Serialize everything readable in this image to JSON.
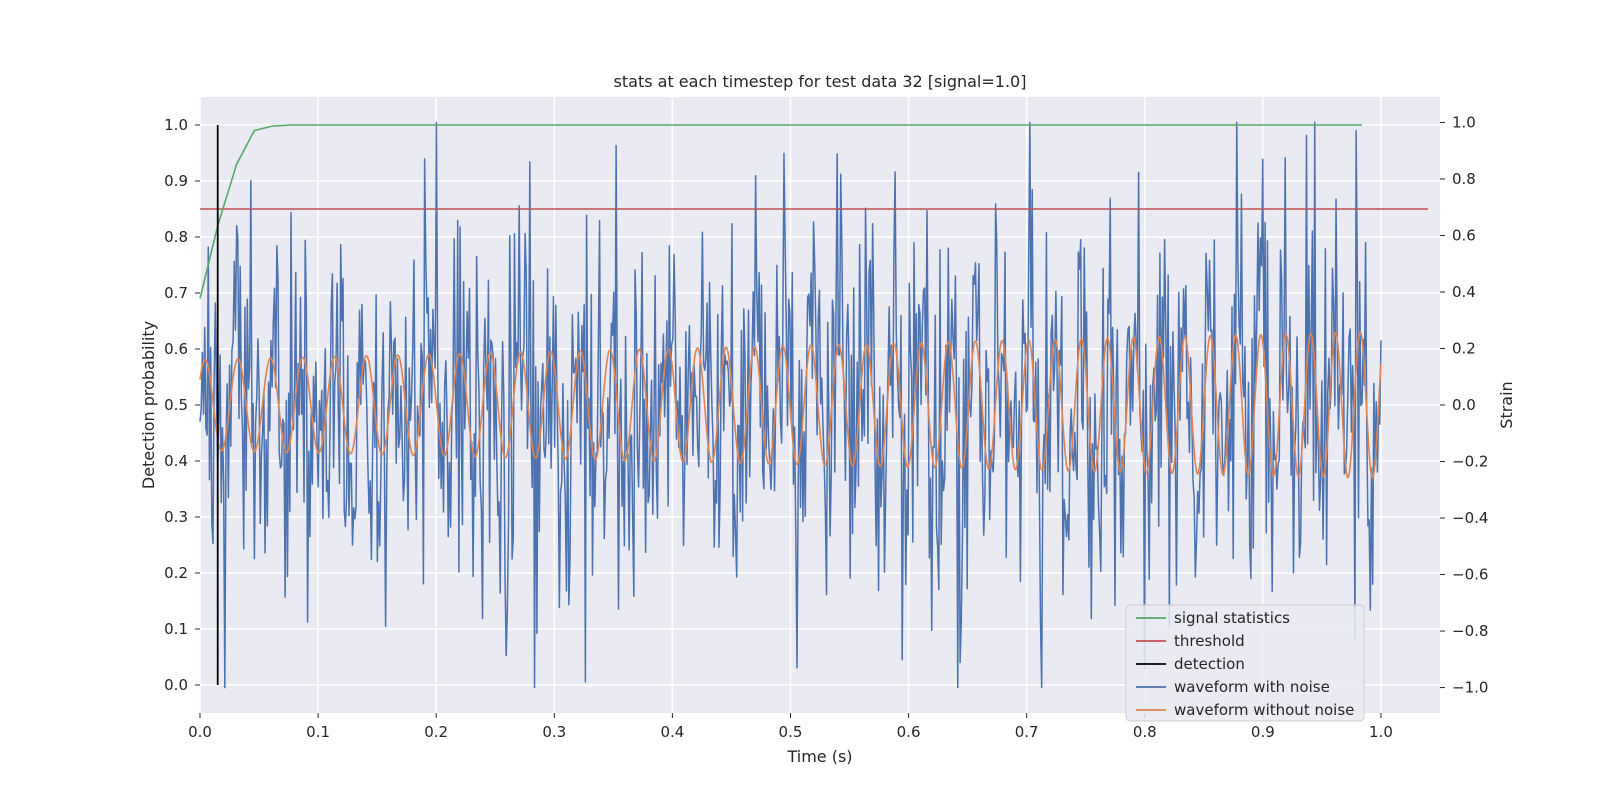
{
  "chart_data": {
    "type": "line",
    "title": "stats at each timestep for test data 32 [signal=1.0]",
    "xlabel": "Time (s)",
    "ylabel_left": "Detection probability",
    "ylabel_right": "Strain",
    "xlim": [
      0.0,
      1.05
    ],
    "ylim_left": [
      -0.05,
      1.05
    ],
    "ylim_right": [
      -1.09,
      1.09
    ],
    "xticks": [
      "0.0",
      "0.1",
      "0.2",
      "0.3",
      "0.4",
      "0.5",
      "0.6",
      "0.7",
      "0.8",
      "0.9",
      "1.0"
    ],
    "yticks_left": [
      "0.0",
      "0.1",
      "0.2",
      "0.3",
      "0.4",
      "0.5",
      "0.6",
      "0.7",
      "0.8",
      "0.9",
      "1.0"
    ],
    "yticks_right": [
      "−1.0",
      "−0.8",
      "−0.6",
      "−0.4",
      "−0.2",
      "0.0",
      "0.2",
      "0.4",
      "0.6",
      "0.8",
      "1.0"
    ],
    "grid": true,
    "legend_position": "lower-right",
    "colors": {
      "background": "#eaeaf2",
      "grid": "#ffffff",
      "signal_statistics": "#55a868",
      "threshold": "#c44e52",
      "detection": "#000000",
      "waveform_with_noise": "#4c72b0",
      "waveform_without_noise": "#dd8452"
    },
    "series": [
      {
        "name": "signal statistics",
        "axis": "left",
        "x": [
          0.0,
          0.015,
          0.031,
          0.046,
          0.061,
          0.077,
          0.1,
          0.2,
          0.3,
          0.4,
          0.5,
          0.6,
          0.7,
          0.8,
          0.9,
          0.984
        ],
        "y": [
          0.69,
          0.82,
          0.93,
          0.99,
          0.998,
          1.0,
          1.0,
          1.0,
          1.0,
          1.0,
          1.0,
          1.0,
          1.0,
          1.0,
          1.0,
          1.0
        ]
      },
      {
        "name": "threshold",
        "axis": "left",
        "x": [
          0.0,
          1.04
        ],
        "y": [
          0.85,
          0.85
        ]
      },
      {
        "name": "detection",
        "axis": "left",
        "x": [
          0.015,
          0.015
        ],
        "y": [
          0.0,
          1.0
        ]
      },
      {
        "name": "waveform with noise",
        "axis": "right",
        "x_range": [
          0.0,
          1.0
        ],
        "num_points": 1000,
        "approx_range": [
          -1.0,
          1.0
        ],
        "notable_peaks": [
          {
            "x": 0.2,
            "y": 1.0
          },
          {
            "x": 0.279,
            "y": 0.86
          },
          {
            "x": 0.326,
            "y": -0.98
          },
          {
            "x": 0.642,
            "y": -1.0
          },
          {
            "x": 0.979,
            "y": 0.97
          }
        ]
      },
      {
        "name": "waveform without noise",
        "axis": "right",
        "x_range": [
          0.0,
          1.0
        ],
        "amplitude_start": 0.16,
        "amplitude_end": 0.26,
        "cycles": 42
      }
    ]
  }
}
